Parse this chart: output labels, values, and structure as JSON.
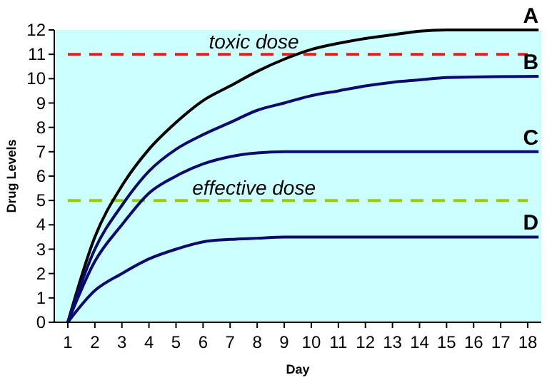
{
  "chart_data": {
    "type": "line",
    "xlabel": "Day",
    "ylabel": "Drug Levels",
    "xlim": [
      0.5,
      18.5
    ],
    "xticks": [
      1,
      2,
      3,
      4,
      5,
      6,
      7,
      8,
      9,
      10,
      11,
      12,
      13,
      14,
      15,
      16,
      17,
      18
    ],
    "ylim": [
      0,
      12
    ],
    "yticks": [
      0,
      1,
      2,
      3,
      4,
      5,
      6,
      7,
      8,
      9,
      10,
      11,
      12
    ],
    "x": [
      1,
      2,
      3,
      4,
      5,
      6,
      7,
      8,
      9,
      10,
      11,
      12,
      13,
      14,
      15,
      18.4
    ],
    "series": [
      {
        "name": "A",
        "color": "#000000",
        "values": [
          0,
          3.5,
          5.6,
          7.1,
          8.2,
          9.1,
          9.7,
          10.3,
          10.8,
          11.2,
          11.45,
          11.65,
          11.8,
          11.95,
          12,
          12
        ]
      },
      {
        "name": "B",
        "color": "#0a0a6e",
        "values": [
          0,
          3.0,
          4.8,
          6.2,
          7.1,
          7.7,
          8.2,
          8.7,
          9.0,
          9.3,
          9.5,
          9.7,
          9.85,
          9.95,
          10.05,
          10.1
        ]
      },
      {
        "name": "C",
        "color": "#0a0a6e",
        "values": [
          0,
          2.5,
          4.0,
          5.3,
          6.0,
          6.5,
          6.8,
          6.95,
          7.0,
          7.0,
          7.0,
          7.0,
          7.0,
          7.0,
          7.0,
          7.0
        ]
      },
      {
        "name": "D",
        "color": "#0a0a6e",
        "values": [
          0,
          1.3,
          2.0,
          2.6,
          3.0,
          3.3,
          3.4,
          3.45,
          3.5,
          3.5,
          3.5,
          3.5,
          3.5,
          3.5,
          3.5,
          3.5
        ]
      }
    ],
    "ref_lines": [
      {
        "axis": "y",
        "value": 11,
        "label": "toxic dose",
        "color": "#e02020",
        "line_style": "dashed"
      },
      {
        "axis": "y",
        "value": 5,
        "label": "effective dose",
        "color": "#99cc00",
        "line_style": "dashed"
      }
    ],
    "grid": false,
    "legend": false
  }
}
